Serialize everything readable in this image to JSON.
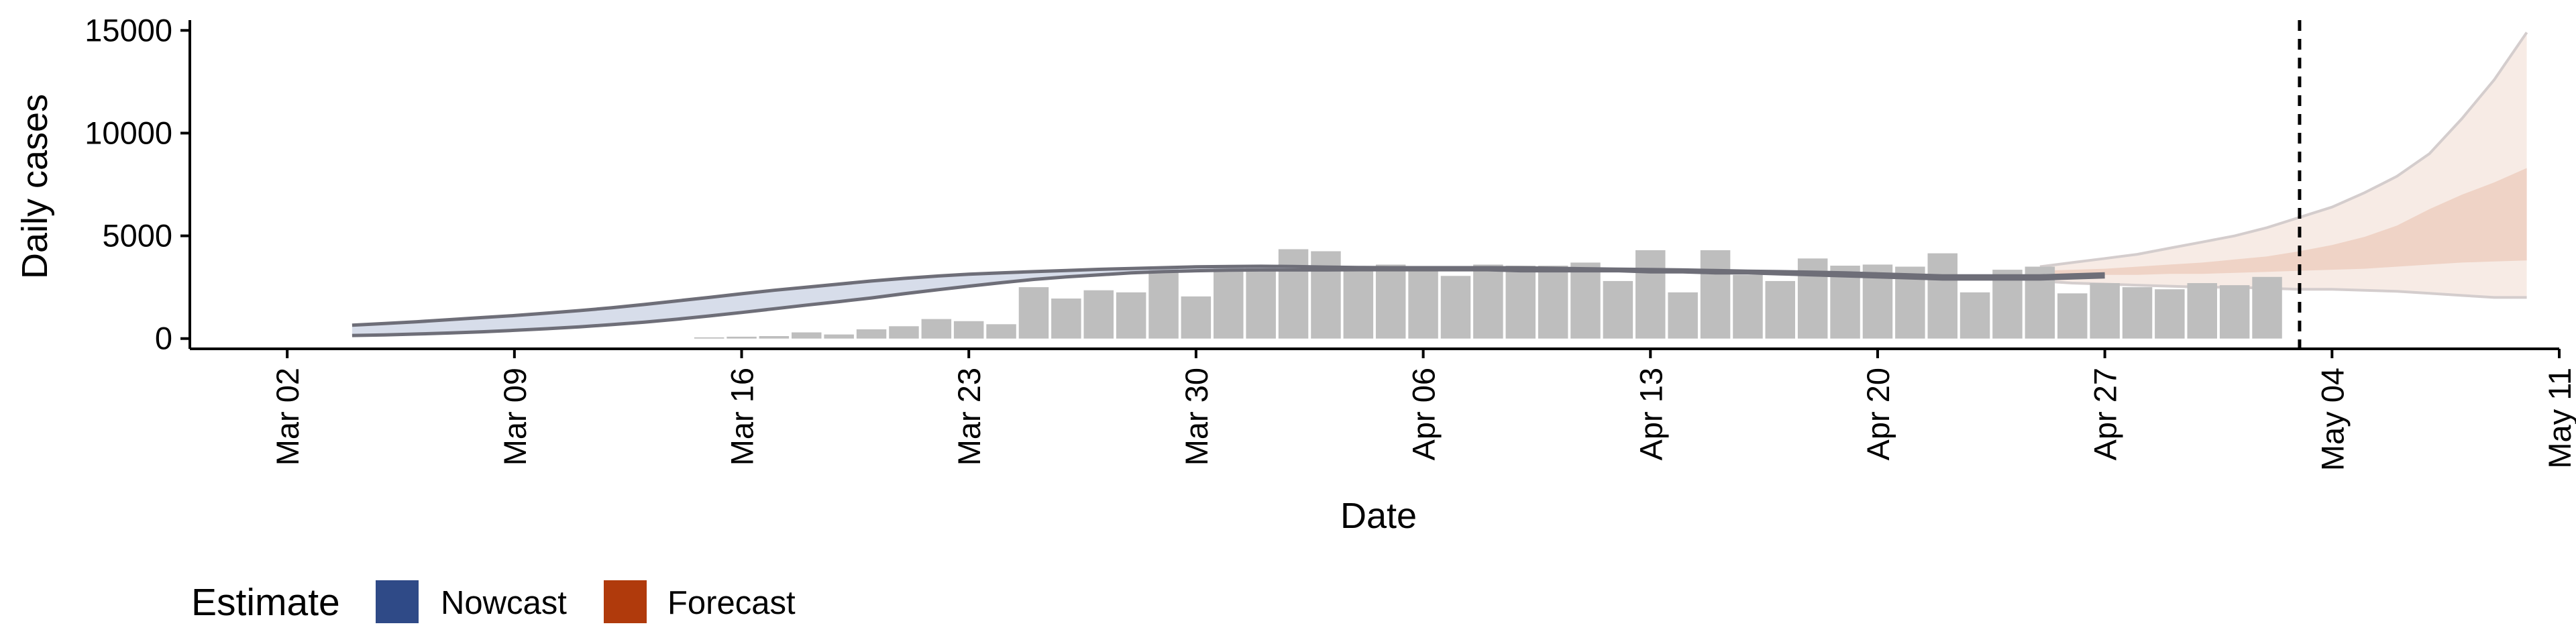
{
  "chart_data": {
    "type": "bar",
    "xlabel": "Date",
    "ylabel": "Daily cases",
    "ylim": [
      -500,
      15500
    ],
    "yticks": [
      0,
      5000,
      10000,
      15000
    ],
    "ytick_labels": [
      "0",
      "5000",
      "10000",
      "15000"
    ],
    "xlim": [
      "2020-02-28",
      "2020-05-11"
    ],
    "xticks": [
      "2020-03-02",
      "2020-03-09",
      "2020-03-16",
      "2020-03-23",
      "2020-03-30",
      "2020-04-06",
      "2020-04-13",
      "2020-04-20",
      "2020-04-27",
      "2020-05-04",
      "2020-05-11"
    ],
    "xtick_labels": [
      "Mar 02",
      "Mar 09",
      "Mar 16",
      "Mar 23",
      "Mar 30",
      "Apr 06",
      "Apr 13",
      "Apr 20",
      "Apr 27",
      "May 04",
      "May 11"
    ],
    "grid": false,
    "vline_date": "2020-05-03",
    "bars": {
      "start_date": "2020-03-15",
      "values": [
        60,
        90,
        120,
        300,
        200,
        450,
        600,
        950,
        850,
        700,
        2500,
        1950,
        2350,
        2250,
        3400,
        2050,
        3500,
        3500,
        4350,
        4250,
        3400,
        3600,
        3450,
        3050,
        3600,
        3550,
        3550,
        3700,
        2800,
        4300,
        2250,
        4300,
        3100,
        2800,
        3900,
        3550,
        3600,
        3500,
        4150,
        2250,
        3350,
        3500,
        2200,
        2700,
        2500,
        2400,
        2700,
        2600,
        3000
      ]
    },
    "series": [
      {
        "name": "Nowcast",
        "start_date": "2020-03-04",
        "lower": [
          150,
          180,
          220,
          270,
          330,
          400,
          480,
          570,
          680,
          800,
          940,
          1100,
          1270,
          1450,
          1630,
          1800,
          1980,
          2180,
          2370,
          2550,
          2720,
          2880,
          3000,
          3100,
          3200,
          3260,
          3300,
          3330,
          3340,
          3340,
          3340,
          3350,
          3350,
          3350,
          3350,
          3350,
          3300,
          3300,
          3300,
          3300,
          3250,
          3250,
          3200,
          3200,
          3150,
          3100,
          3050,
          3000,
          2950,
          2900,
          2900,
          2900,
          2900,
          2950,
          3000
        ],
        "upper": [
          650,
          730,
          820,
          920,
          1020,
          1120,
          1240,
          1360,
          1500,
          1660,
          1830,
          2000,
          2180,
          2350,
          2500,
          2650,
          2800,
          2930,
          3040,
          3130,
          3200,
          3260,
          3310,
          3370,
          3410,
          3450,
          3490,
          3510,
          3520,
          3510,
          3480,
          3460,
          3450,
          3450,
          3450,
          3450,
          3440,
          3420,
          3400,
          3380,
          3360,
          3340,
          3310,
          3280,
          3260,
          3230,
          3200,
          3150,
          3100,
          3050,
          3050,
          3050,
          3050,
          3100,
          3150
        ]
      },
      {
        "name": "Forecast",
        "start_date": "2020-04-25",
        "outer_lower": [
          2800,
          2700,
          2650,
          2600,
          2550,
          2500,
          2500,
          2450,
          2400,
          2400,
          2350,
          2300,
          2200,
          2100,
          2000,
          2000
        ],
        "inner_lower": [
          3000,
          3050,
          3100,
          3100,
          3150,
          3150,
          3200,
          3250,
          3300,
          3350,
          3400,
          3500,
          3600,
          3700,
          3750,
          3800
        ],
        "inner_upper": [
          3300,
          3350,
          3400,
          3500,
          3600,
          3700,
          3850,
          4000,
          4250,
          4550,
          4950,
          5500,
          6300,
          7000,
          7600,
          8300
        ],
        "outer_upper": [
          3500,
          3700,
          3900,
          4100,
          4400,
          4700,
          5000,
          5400,
          5900,
          6400,
          7100,
          7900,
          9000,
          10700,
          12600,
          14900
        ]
      }
    ],
    "legend": {
      "title": "Estimate",
      "placement": "bottom",
      "items": [
        {
          "label": "Nowcast",
          "color": "#2f4a87"
        },
        {
          "label": "Forecast",
          "color": "#b03a0c"
        }
      ]
    },
    "colors": {
      "bar": "#bebebe",
      "nowcast_fill": "#c9d1e3",
      "nowcast_line": "#6e6e78",
      "forecast_outer": "#f7ebe5",
      "forecast_inner": "#efd3c6",
      "forecast_line": "#d4cdcd"
    }
  }
}
